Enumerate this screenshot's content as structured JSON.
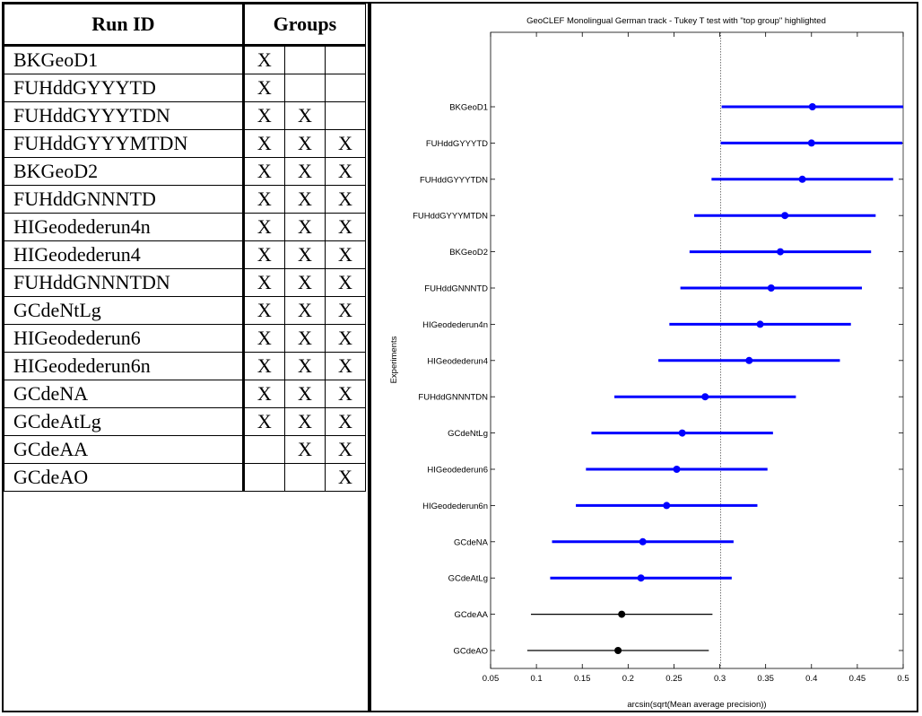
{
  "table": {
    "headers": {
      "run_id": "Run ID",
      "groups": "Groups"
    },
    "rows": [
      {
        "run_id": "BKGeoD1",
        "g1": "X",
        "g2": "",
        "g3": ""
      },
      {
        "run_id": "FUHddGYYYTD",
        "g1": "X",
        "g2": "",
        "g3": ""
      },
      {
        "run_id": "FUHddGYYYTDN",
        "g1": "X",
        "g2": "X",
        "g3": ""
      },
      {
        "run_id": "FUHddGYYYMTDN",
        "g1": "X",
        "g2": "X",
        "g3": "X"
      },
      {
        "run_id": "BKGeoD2",
        "g1": "X",
        "g2": "X",
        "g3": "X"
      },
      {
        "run_id": "FUHddGNNNTD",
        "g1": "X",
        "g2": "X",
        "g3": "X"
      },
      {
        "run_id": "HIGeodederun4n",
        "g1": "X",
        "g2": "X",
        "g3": "X"
      },
      {
        "run_id": "HIGeodederun4",
        "g1": "X",
        "g2": "X",
        "g3": "X"
      },
      {
        "run_id": "FUHddGNNNTDN",
        "g1": "X",
        "g2": "X",
        "g3": "X"
      },
      {
        "run_id": "GCdeNtLg",
        "g1": "X",
        "g2": "X",
        "g3": "X"
      },
      {
        "run_id": "HIGeodederun6",
        "g1": "X",
        "g2": "X",
        "g3": "X"
      },
      {
        "run_id": "HIGeodederun6n",
        "g1": "X",
        "g2": "X",
        "g3": "X"
      },
      {
        "run_id": "GCdeNA",
        "g1": "X",
        "g2": "X",
        "g3": "X"
      },
      {
        "run_id": "GCdeAtLg",
        "g1": "X",
        "g2": "X",
        "g3": "X"
      },
      {
        "run_id": "GCdeAA",
        "g1": "",
        "g2": "X",
        "g3": "X"
      },
      {
        "run_id": "GCdeAO",
        "g1": "",
        "g2": "",
        "g3": "X"
      }
    ]
  },
  "chart_data": {
    "type": "interval",
    "title": "GeoCLEF Monolingual German track - Tukey T test with \"top group\" highlighted",
    "xlabel": "arcsin(sqrt(Mean average precision))",
    "ylabel": "Experiments",
    "xlim": [
      0.05,
      0.5
    ],
    "xticks": [
      "0.05",
      "0.1",
      "0.15",
      "0.2",
      "0.25",
      "0.3",
      "0.35",
      "0.4",
      "0.45",
      "0.5"
    ],
    "reference_lines": [
      0.301,
      0.5
    ],
    "colors": {
      "highlight": "#0000ff",
      "other": "#000000"
    },
    "series": [
      {
        "label": "BKGeoD1",
        "mean": 0.401,
        "low": 0.302,
        "high": 0.5,
        "highlight": true
      },
      {
        "label": "FUHddGYYYTD",
        "mean": 0.4,
        "low": 0.301,
        "high": 0.499,
        "highlight": true
      },
      {
        "label": "FUHddGYYYTDN",
        "mean": 0.39,
        "low": 0.291,
        "high": 0.489,
        "highlight": true
      },
      {
        "label": "FUHddGYYYMTDN",
        "mean": 0.371,
        "low": 0.272,
        "high": 0.47,
        "highlight": true
      },
      {
        "label": "BKGeoD2",
        "mean": 0.366,
        "low": 0.267,
        "high": 0.465,
        "highlight": true
      },
      {
        "label": "FUHddGNNNTD",
        "mean": 0.356,
        "low": 0.257,
        "high": 0.455,
        "highlight": true
      },
      {
        "label": "HIGeodederun4n",
        "mean": 0.344,
        "low": 0.245,
        "high": 0.443,
        "highlight": true
      },
      {
        "label": "HIGeodederun4",
        "mean": 0.332,
        "low": 0.233,
        "high": 0.431,
        "highlight": true
      },
      {
        "label": "FUHddGNNNTDN",
        "mean": 0.284,
        "low": 0.185,
        "high": 0.383,
        "highlight": true
      },
      {
        "label": "GCdeNtLg",
        "mean": 0.259,
        "low": 0.16,
        "high": 0.358,
        "highlight": true
      },
      {
        "label": "HIGeodederun6",
        "mean": 0.253,
        "low": 0.154,
        "high": 0.352,
        "highlight": true
      },
      {
        "label": "HIGeodederun6n",
        "mean": 0.242,
        "low": 0.143,
        "high": 0.341,
        "highlight": true
      },
      {
        "label": "GCdeNA",
        "mean": 0.216,
        "low": 0.117,
        "high": 0.315,
        "highlight": true
      },
      {
        "label": "GCdeAtLg",
        "mean": 0.214,
        "low": 0.115,
        "high": 0.313,
        "highlight": true
      },
      {
        "label": "GCdeAA",
        "mean": 0.193,
        "low": 0.094,
        "high": 0.292,
        "highlight": false
      },
      {
        "label": "GCdeAO",
        "mean": 0.189,
        "low": 0.09,
        "high": 0.288,
        "highlight": false
      }
    ]
  }
}
